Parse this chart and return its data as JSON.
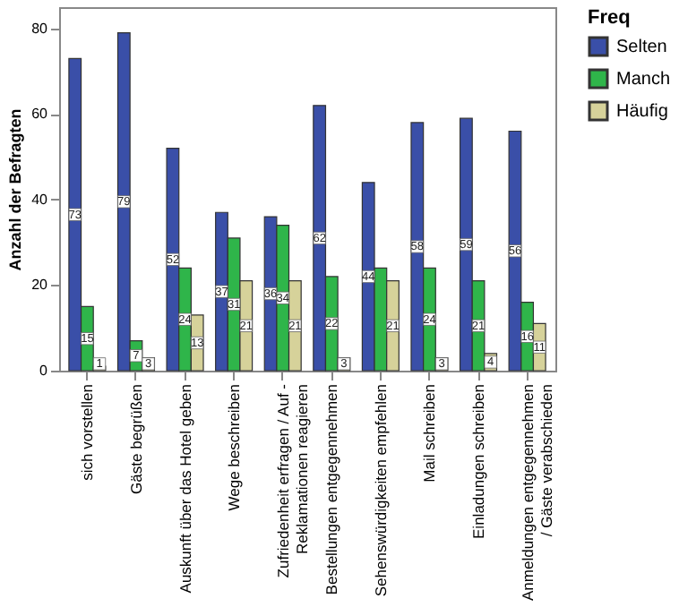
{
  "chart_data": {
    "type": "bar",
    "ylabel": "Anzahl der Befragten",
    "legend_title": "Freq",
    "legend": "right",
    "grid": false,
    "categories": [
      "sich vorstellen",
      "Gäste begrüßen",
      "Auskunft über das Hotel geben",
      "Wege beschreiben",
      "Zufriedenheit erfragen / Auf -\nReklamationen reagieren",
      "Bestellungen entgegennehmen",
      "Sehenswürdigkeiten empfehlen",
      "Mail schreiben",
      "Einladungen schreiben",
      "Anmeldungen entgegennehmen\n/ Gäste verabschieden"
    ],
    "ylim": [
      0,
      85
    ],
    "yticks": [
      0,
      20,
      40,
      60,
      80
    ],
    "series": [
      {
        "name": "Selten",
        "color": "#3a4fa8",
        "values": [
          73,
          79,
          52,
          37,
          36,
          62,
          44,
          58,
          59,
          56
        ],
        "value_labels": [
          "73",
          "79",
          "52",
          "37",
          "36",
          "62",
          "44",
          "58",
          "59",
          "56"
        ]
      },
      {
        "name": "Manch",
        "color": "#2fb54a",
        "values": [
          15,
          7,
          24,
          31,
          34,
          22,
          24,
          24,
          21,
          16
        ],
        "value_labels": [
          "15",
          "7",
          "24",
          "31",
          "34",
          "22",
          null,
          "24",
          "21",
          "16"
        ]
      },
      {
        "name": "Häufig",
        "color": "#d6d29a",
        "values": [
          1,
          3,
          13,
          21,
          21,
          3,
          21,
          3,
          4,
          11
        ],
        "value_labels": [
          "1",
          "3",
          "13",
          "21",
          "21",
          "3",
          "21",
          "3",
          "4",
          "11"
        ]
      }
    ]
  }
}
